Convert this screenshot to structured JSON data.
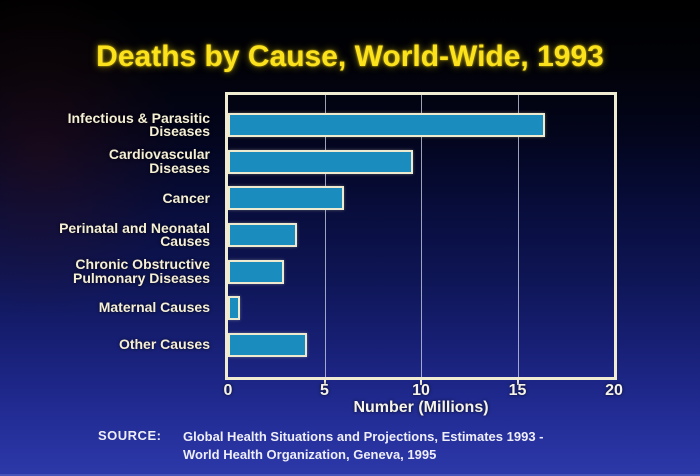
{
  "title": "Deaths by Cause, World-Wide, 1993",
  "chart_data": {
    "type": "bar",
    "orientation": "horizontal",
    "title": "Deaths by Cause, World-Wide, 1993",
    "categories": [
      "Infectious & Parasitic\nDiseases",
      "Cardiovascular\nDiseases",
      "Cancer",
      "Perinatal and Neonatal\nCauses",
      "Chronic Obstructive\nPulmonary Diseases",
      "Maternal Causes",
      "Other Causes"
    ],
    "values": [
      16.4,
      9.6,
      6.0,
      3.6,
      2.9,
      0.6,
      4.1
    ],
    "xlabel": "Number (Millions)",
    "xlim": [
      0,
      20
    ],
    "x_ticks": [
      0,
      5,
      10,
      15,
      20
    ],
    "grid": true,
    "legend": false
  },
  "source": {
    "label": "SOURCE:",
    "lines": [
      "Global Health Situations and Projections, Estimates 1993 -",
      "World Health Organization, Geneva, 1995"
    ]
  },
  "colors": {
    "title": "#fce21c",
    "bar_fill": "#1a8cbe",
    "bar_border": "#eeead0",
    "plot_border": "#f0ecd2",
    "label_text": "#f5efd5",
    "axis_text": "#f5f3e8",
    "source_text": "#eeeef8"
  }
}
